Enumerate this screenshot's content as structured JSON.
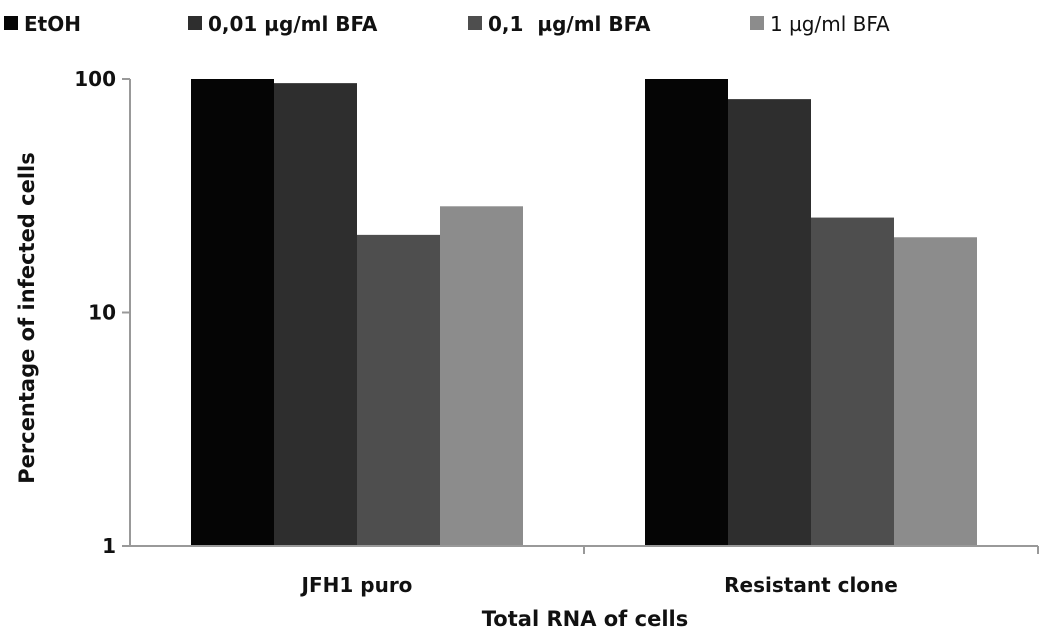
{
  "chart_data": {
    "type": "bar",
    "title": "",
    "xlabel": "Total RNA of cells",
    "ylabel": "Percentage of infected cells",
    "y_scale": "log",
    "ylim": [
      1,
      100
    ],
    "yticks": [
      "1",
      "10",
      "100"
    ],
    "grid": false,
    "legend_position": "top",
    "categories": [
      "JFH1 puro",
      "Resistant clone"
    ],
    "series": [
      {
        "name": "EtOH",
        "color": "#050505",
        "values": [
          100,
          100
        ]
      },
      {
        "name": "0,01 µg/ml BFA",
        "color": "#2e2e2e",
        "values": [
          96,
          82
        ]
      },
      {
        "name": "0,1  µg/ml BFA",
        "color": "#4e4e4e",
        "values": [
          21.5,
          25.5
        ]
      },
      {
        "name": "1 µg/ml BFA",
        "color": "#8c8c8c",
        "values": [
          28.5,
          21
        ]
      }
    ]
  }
}
